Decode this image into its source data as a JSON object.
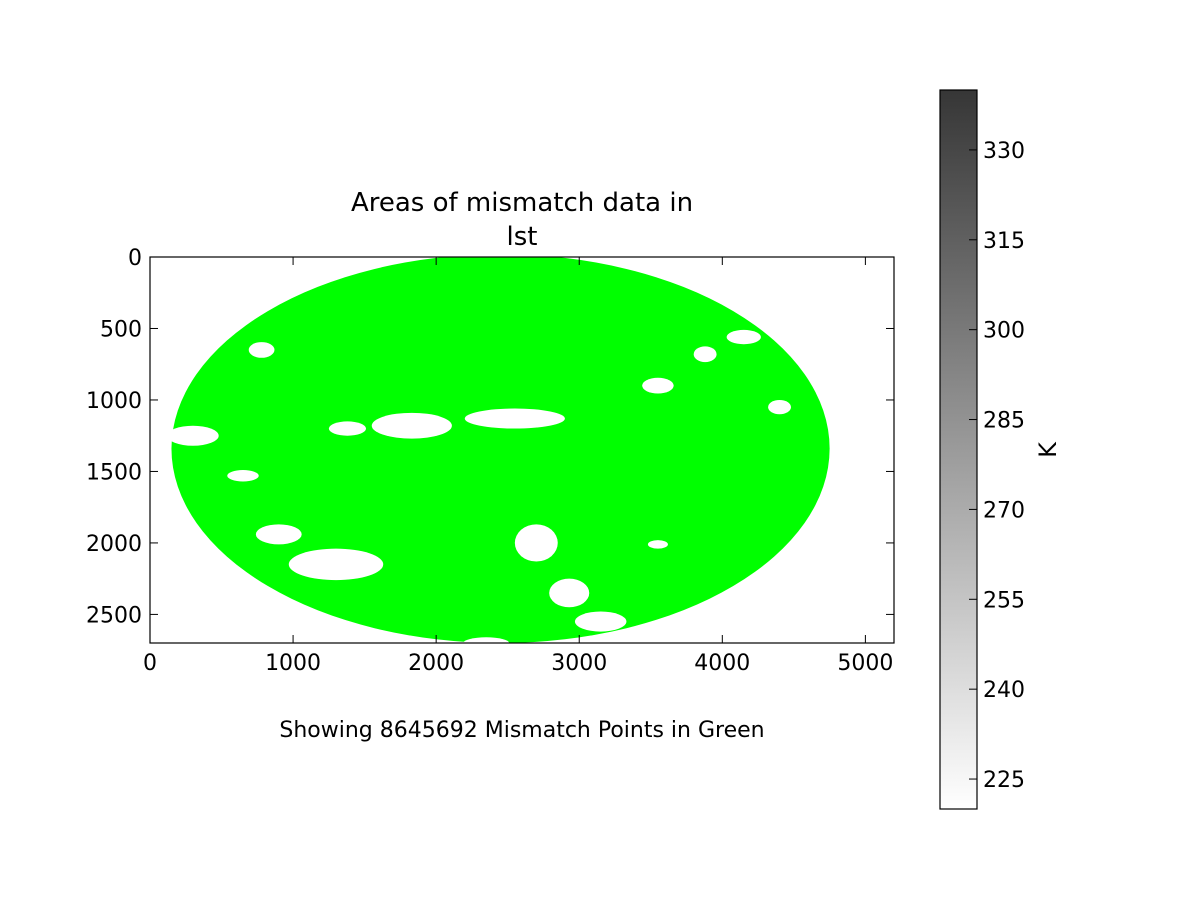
{
  "chart_data": {
    "type": "heatmap",
    "title_line1": "Areas of mismatch data in",
    "title_line2": "lst",
    "caption": "Showing 8645692 Mismatch Points in Green",
    "xlim": [
      0,
      5200
    ],
    "ylim": [
      2700,
      0
    ],
    "x_ticks": [
      0,
      1000,
      2000,
      3000,
      4000,
      5000
    ],
    "y_ticks": [
      0,
      500,
      1000,
      1500,
      2000,
      2500
    ],
    "mismatch_color": "#00ff00",
    "mismatch_count": 8645692,
    "disk": {
      "center_x": 2450,
      "center_y": 1340,
      "radius_x": 2300,
      "radius_y": 1360
    },
    "colorbar": {
      "label": "K",
      "range": [
        220,
        340
      ],
      "ticks": [
        225,
        240,
        255,
        270,
        285,
        300,
        315,
        330
      ],
      "cmap_low": "#ffffff",
      "cmap_high": "#363636"
    },
    "holes": [
      {
        "cx": 780,
        "cy": 650,
        "rx": 90,
        "ry": 55
      },
      {
        "cx": 300,
        "cy": 1250,
        "rx": 180,
        "ry": 70
      },
      {
        "cx": 650,
        "cy": 1530,
        "rx": 110,
        "ry": 40
      },
      {
        "cx": 1380,
        "cy": 1200,
        "rx": 130,
        "ry": 50
      },
      {
        "cx": 1830,
        "cy": 1180,
        "rx": 280,
        "ry": 90
      },
      {
        "cx": 2550,
        "cy": 1130,
        "rx": 350,
        "ry": 70
      },
      {
        "cx": 3550,
        "cy": 900,
        "rx": 110,
        "ry": 55
      },
      {
        "cx": 3880,
        "cy": 680,
        "rx": 80,
        "ry": 55
      },
      {
        "cx": 4150,
        "cy": 560,
        "rx": 120,
        "ry": 50
      },
      {
        "cx": 4400,
        "cy": 1050,
        "rx": 80,
        "ry": 50
      },
      {
        "cx": 1300,
        "cy": 2150,
        "rx": 330,
        "ry": 110
      },
      {
        "cx": 900,
        "cy": 1940,
        "rx": 160,
        "ry": 70
      },
      {
        "cx": 2700,
        "cy": 2000,
        "rx": 150,
        "ry": 130
      },
      {
        "cx": 2930,
        "cy": 2350,
        "rx": 140,
        "ry": 100
      },
      {
        "cx": 3150,
        "cy": 2550,
        "rx": 180,
        "ry": 70
      },
      {
        "cx": 3550,
        "cy": 2010,
        "rx": 70,
        "ry": 30
      },
      {
        "cx": 2350,
        "cy": 2700,
        "rx": 160,
        "ry": 40
      }
    ]
  }
}
